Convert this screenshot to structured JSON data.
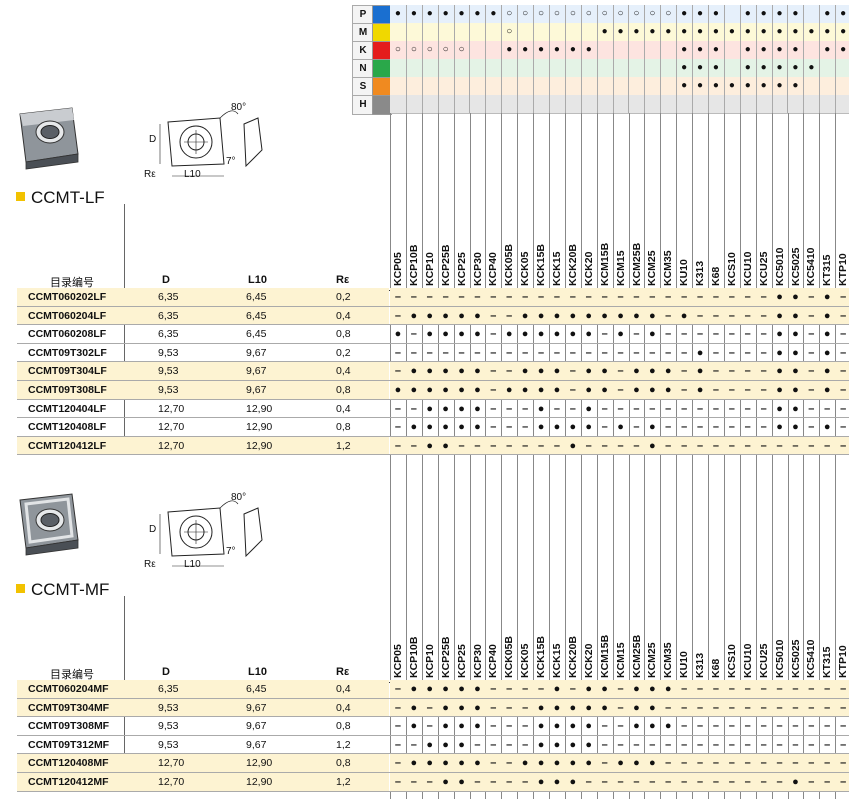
{
  "materials": [
    {
      "code": "P",
      "color": "#1a6fd0"
    },
    {
      "code": "M",
      "color": "#f0d800"
    },
    {
      "code": "K",
      "color": "#e41c1c"
    },
    {
      "code": "N",
      "color": "#2aa84a"
    },
    {
      "code": "S",
      "color": "#f08a20"
    },
    {
      "code": "H",
      "color": "#8a8a8a"
    }
  ],
  "grades": [
    "KCP05",
    "KCP10B",
    "KCP10",
    "KCP25B",
    "KCP25",
    "KCP30",
    "KCP40",
    "KCK05B",
    "KCK05",
    "KCK15B",
    "KCK15",
    "KCK20B",
    "KCK20",
    "KCM15B",
    "KCM15",
    "KCM25B",
    "KCM25",
    "KCM35",
    "KU10",
    "K313",
    "K68",
    "KCS10",
    "KCU10",
    "KCU25",
    "KC5010",
    "KC5025",
    "KC5410",
    "KT315",
    "KTP10"
  ],
  "application_matrix": {
    "P": [
      "●",
      "●",
      "●",
      "●",
      "●",
      "●",
      "●",
      "○",
      "○",
      "○",
      "○",
      "○",
      "○",
      "○",
      "○",
      "○",
      "○",
      "○",
      "●",
      "●",
      "●",
      "",
      "●",
      "●",
      "●",
      "●",
      "",
      "●",
      "●"
    ],
    "M": [
      "",
      "",
      "",
      "",
      "",
      "",
      "",
      "○",
      "",
      "",
      "",
      "",
      "",
      "●",
      "●",
      "●",
      "●",
      "●",
      "●",
      "●",
      "●",
      "●",
      "●",
      "●",
      "●",
      "●",
      "●",
      "●",
      "●"
    ],
    "K": [
      "○",
      "○",
      "○",
      "○",
      "○",
      "",
      "",
      "●",
      "●",
      "●",
      "●",
      "●",
      "●",
      "",
      "",
      "",
      "",
      "",
      "●",
      "●",
      "●",
      "",
      "●",
      "●",
      "●",
      "●",
      "",
      "●",
      "●"
    ],
    "N": [
      "",
      "",
      "",
      "",
      "",
      "",
      "",
      "",
      "",
      "",
      "",
      "",
      "",
      "",
      "",
      "",
      "",
      "",
      "●",
      "●",
      "●",
      "",
      "●",
      "●",
      "●",
      "●",
      "●",
      "",
      ""
    ],
    "S": [
      "",
      "",
      "",
      "",
      "",
      "",
      "",
      "",
      "",
      "",
      "",
      "",
      "",
      "",
      "",
      "",
      "",
      "",
      "●",
      "●",
      "●",
      "●",
      "●",
      "●",
      "●",
      "●",
      "",
      "",
      ""
    ],
    "H": [
      "",
      "",
      "",
      "",
      "",
      "",
      "",
      "",
      "",
      "",
      "",
      "",
      "",
      "",
      "",
      "",
      "",
      "",
      "",
      "",
      "",
      "",
      "",
      "",
      "",
      "",
      "",
      "",
      ""
    ]
  },
  "sections": [
    {
      "title": "CCMT-LF",
      "diagram_labels": {
        "angle": "80°",
        "d": "D",
        "l": "L10",
        "r": "Rε",
        "clearance": "7°"
      },
      "columns": {
        "code": "目录编号",
        "d": "D",
        "l10": "L10",
        "re": "Rε"
      },
      "rows": [
        {
          "code": "CCMT060202LF",
          "d": "6,35",
          "l10": "6,45",
          "re": "0,2",
          "hl": true,
          "marks": [
            "–",
            "–",
            "–",
            "–",
            "–",
            "–",
            "–",
            "–",
            "–",
            "–",
            "–",
            "–",
            "–",
            "–",
            "–",
            "–",
            "–",
            "–",
            "–",
            "–",
            "–",
            "–",
            "–",
            "–",
            "●",
            "●",
            "–",
            "●",
            "–"
          ]
        },
        {
          "code": "CCMT060204LF",
          "d": "6,35",
          "l10": "6,45",
          "re": "0,4",
          "hl": true,
          "marks": [
            "–",
            "●",
            "●",
            "●",
            "●",
            "●",
            "–",
            "–",
            "●",
            "●",
            "●",
            "●",
            "●",
            "●",
            "●",
            "●",
            "●",
            "–",
            "●",
            "–",
            "–",
            "–",
            "–",
            "–",
            "●",
            "●",
            "–",
            "●",
            "–"
          ]
        },
        {
          "code": "CCMT060208LF",
          "d": "6,35",
          "l10": "6,45",
          "re": "0,8",
          "hl": false,
          "marks": [
            "●",
            "–",
            "●",
            "●",
            "●",
            "●",
            "–",
            "●",
            "●",
            "●",
            "●",
            "●",
            "●",
            "–",
            "●",
            "–",
            "●",
            "–",
            "–",
            "–",
            "–",
            "–",
            "–",
            "–",
            "●",
            "●",
            "–",
            "●",
            "–"
          ]
        },
        {
          "code": "CCMT09T302LF",
          "d": "9,53",
          "l10": "9,67",
          "re": "0,2",
          "hl": false,
          "marks": [
            "–",
            "–",
            "–",
            "–",
            "–",
            "–",
            "–",
            "–",
            "–",
            "–",
            "–",
            "–",
            "–",
            "–",
            "–",
            "–",
            "–",
            "–",
            "–",
            "●",
            "–",
            "–",
            "–",
            "–",
            "●",
            "●",
            "–",
            "●",
            "–"
          ]
        },
        {
          "code": "CCMT09T304LF",
          "d": "9,53",
          "l10": "9,67",
          "re": "0,4",
          "hl": true,
          "marks": [
            "–",
            "●",
            "●",
            "●",
            "●",
            "●",
            "–",
            "–",
            "●",
            "●",
            "●",
            "–",
            "●",
            "●",
            "–",
            "●",
            "●",
            "●",
            "–",
            "●",
            "–",
            "–",
            "–",
            "–",
            "●",
            "●",
            "–",
            "●",
            "–"
          ]
        },
        {
          "code": "CCMT09T308LF",
          "d": "9,53",
          "l10": "9,67",
          "re": "0,8",
          "hl": true,
          "marks": [
            "●",
            "●",
            "●",
            "●",
            "●",
            "●",
            "–",
            "●",
            "●",
            "●",
            "●",
            "–",
            "●",
            "●",
            "–",
            "●",
            "●",
            "●",
            "–",
            "●",
            "–",
            "–",
            "–",
            "–",
            "●",
            "●",
            "–",
            "●",
            "–"
          ]
        },
        {
          "code": "CCMT120404LF",
          "d": "12,70",
          "l10": "12,90",
          "re": "0,4",
          "hl": false,
          "marks": [
            "–",
            "–",
            "●",
            "●",
            "●",
            "●",
            "–",
            "–",
            "–",
            "●",
            "–",
            "–",
            "●",
            "–",
            "–",
            "–",
            "–",
            "–",
            "–",
            "–",
            "–",
            "–",
            "–",
            "–",
            "●",
            "●",
            "–",
            "–",
            "–"
          ]
        },
        {
          "code": "CCMT120408LF",
          "d": "12,70",
          "l10": "12,90",
          "re": "0,8",
          "hl": false,
          "marks": [
            "–",
            "●",
            "●",
            "●",
            "●",
            "●",
            "–",
            "–",
            "–",
            "●",
            "●",
            "●",
            "●",
            "–",
            "●",
            "–",
            "●",
            "–",
            "–",
            "–",
            "–",
            "–",
            "–",
            "–",
            "●",
            "●",
            "–",
            "●",
            "–"
          ]
        },
        {
          "code": "CCMT120412LF",
          "d": "12,70",
          "l10": "12,90",
          "re": "1,2",
          "hl": true,
          "marks": [
            "–",
            "–",
            "●",
            "●",
            "–",
            "–",
            "–",
            "–",
            "–",
            "–",
            "–",
            "●",
            "–",
            "–",
            "–",
            "–",
            "●",
            "–",
            "–",
            "–",
            "–",
            "–",
            "–",
            "–",
            "–",
            "–",
            "–",
            "–",
            "–"
          ]
        }
      ]
    },
    {
      "title": "CCMT-MF",
      "diagram_labels": {
        "angle": "80°",
        "d": "D",
        "l": "L10",
        "r": "Rε",
        "clearance": "7°"
      },
      "columns": {
        "code": "目录编号",
        "d": "D",
        "l10": "L10",
        "re": "Rε"
      },
      "rows": [
        {
          "code": "CCMT060204MF",
          "d": "6,35",
          "l10": "6,45",
          "re": "0,4",
          "hl": true,
          "marks": [
            "–",
            "●",
            "●",
            "●",
            "●",
            "●",
            "–",
            "–",
            "–",
            "–",
            "●",
            "–",
            "●",
            "●",
            "–",
            "●",
            "●",
            "●",
            "–",
            "–",
            "–",
            "–",
            "–",
            "–",
            "–",
            "–",
            "–",
            "–",
            "–"
          ]
        },
        {
          "code": "CCMT09T304MF",
          "d": "9,53",
          "l10": "9,67",
          "re": "0,4",
          "hl": true,
          "marks": [
            "–",
            "●",
            "–",
            "●",
            "●",
            "●",
            "–",
            "–",
            "–",
            "●",
            "●",
            "●",
            "●",
            "●",
            "–",
            "●",
            "●",
            "–",
            "–",
            "–",
            "–",
            "–",
            "–",
            "–",
            "–",
            "–",
            "–",
            "–",
            "–"
          ]
        },
        {
          "code": "CCMT09T308MF",
          "d": "9,53",
          "l10": "9,67",
          "re": "0,8",
          "hl": false,
          "marks": [
            "–",
            "●",
            "–",
            "●",
            "●",
            "●",
            "–",
            "–",
            "–",
            "●",
            "●",
            "●",
            "●",
            "–",
            "–",
            "●",
            "●",
            "●",
            "–",
            "–",
            "–",
            "–",
            "–",
            "–",
            "–",
            "–",
            "–",
            "–",
            "–"
          ]
        },
        {
          "code": "CCMT09T312MF",
          "d": "9,53",
          "l10": "9,67",
          "re": "1,2",
          "hl": false,
          "marks": [
            "–",
            "–",
            "●",
            "●",
            "●",
            "–",
            "–",
            "–",
            "–",
            "●",
            "●",
            "●",
            "●",
            "–",
            "–",
            "–",
            "–",
            "–",
            "–",
            "–",
            "–",
            "–",
            "–",
            "–",
            "–",
            "–",
            "–",
            "–",
            "–"
          ]
        },
        {
          "code": "CCMT120408MF",
          "d": "12,70",
          "l10": "12,90",
          "re": "0,8",
          "hl": true,
          "marks": [
            "–",
            "●",
            "●",
            "●",
            "●",
            "●",
            "–",
            "–",
            "●",
            "●",
            "●",
            "●",
            "●",
            "–",
            "●",
            "●",
            "●",
            "–",
            "–",
            "–",
            "–",
            "–",
            "–",
            "–",
            "–",
            "–",
            "–",
            "–",
            "–"
          ]
        },
        {
          "code": "CCMT120412MF",
          "d": "12,70",
          "l10": "12,90",
          "re": "1,2",
          "hl": true,
          "marks": [
            "–",
            "–",
            "–",
            "●",
            "●",
            "–",
            "–",
            "–",
            "–",
            "●",
            "●",
            "●",
            "–",
            "–",
            "–",
            "–",
            "–",
            "–",
            "–",
            "–",
            "–",
            "–",
            "–",
            "–",
            "–",
            "●",
            "–",
            "–",
            "–"
          ]
        }
      ]
    }
  ]
}
